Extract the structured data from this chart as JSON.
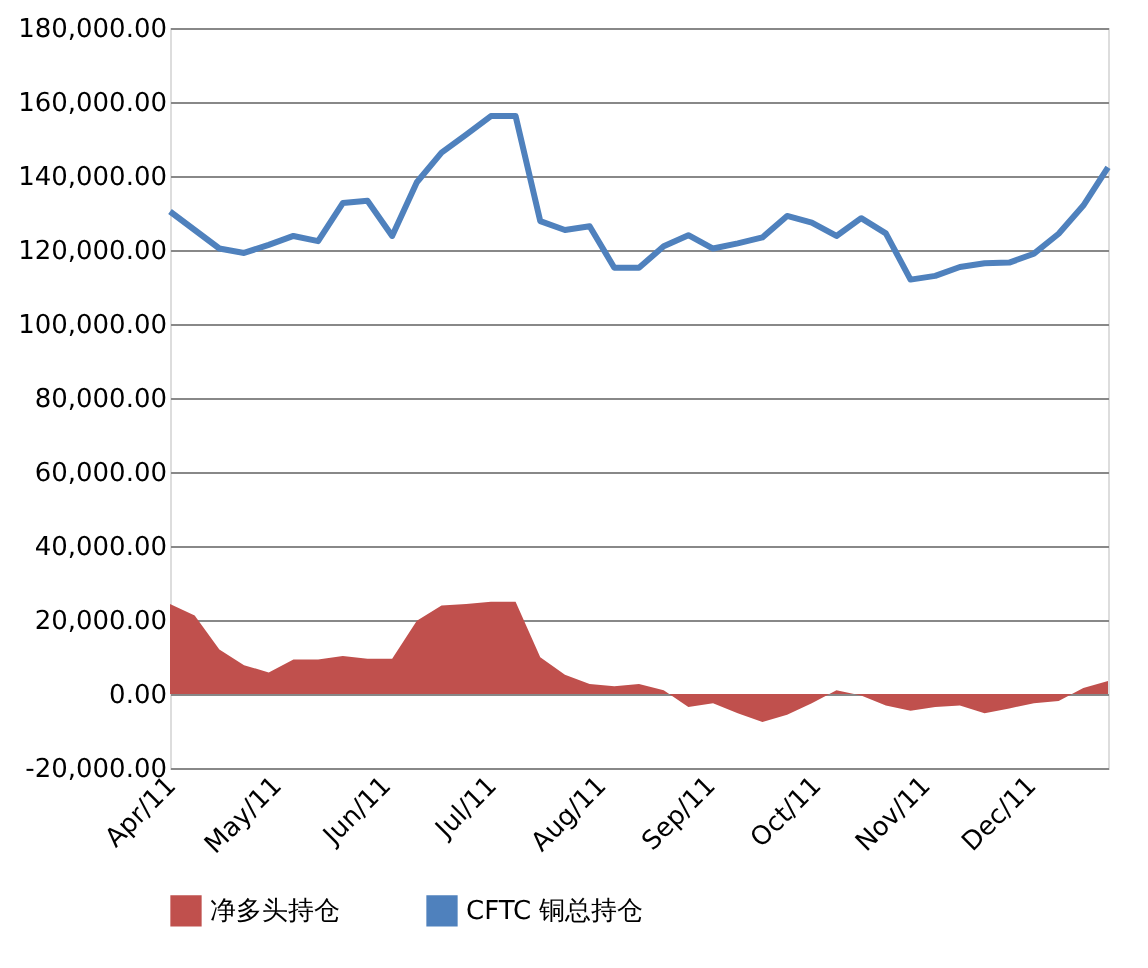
{
  "chart_data": {
    "type": "line",
    "x": [
      "2011-04-01",
      "2011-04-08",
      "2011-04-15",
      "2011-04-22",
      "2011-04-29",
      "2011-05-06",
      "2011-05-13",
      "2011-05-20",
      "2011-05-27",
      "2011-06-03",
      "2011-06-10",
      "2011-06-17",
      "2011-06-24",
      "2011-07-01",
      "2011-07-08",
      "2011-07-15",
      "2011-07-22",
      "2011-07-29",
      "2011-08-05",
      "2011-08-12",
      "2011-08-19",
      "2011-08-26",
      "2011-09-02",
      "2011-09-09",
      "2011-09-16",
      "2011-09-23",
      "2011-09-30",
      "2011-10-07",
      "2011-10-14",
      "2011-10-21",
      "2011-10-28",
      "2011-11-04",
      "2011-11-11",
      "2011-11-18",
      "2011-11-25",
      "2011-12-02",
      "2011-12-09",
      "2011-12-16",
      "2011-12-23"
    ],
    "series": [
      {
        "name": "净多头持仓",
        "type": "area",
        "color": "#c0504d",
        "values": [
          24300,
          21200,
          12000,
          7800,
          5800,
          9300,
          9300,
          10300,
          9500,
          9500,
          19800,
          23900,
          24300,
          24900,
          24900,
          9900,
          5200,
          2700,
          2100,
          2700,
          1000,
          -3500,
          -2500,
          -5200,
          -7600,
          -5600,
          -2500,
          1000,
          -400,
          -3100,
          -4500,
          -3500,
          -3100,
          -5200,
          -3900,
          -2500,
          -1900,
          1600,
          3500
        ]
      },
      {
        "name": "CFTC 铜总持仓",
        "color": "#4f81bd",
        "values": [
          130400,
          125400,
          120400,
          119200,
          121400,
          123800,
          122400,
          132700,
          133300,
          123800,
          138300,
          146300,
          151200,
          156200,
          156200,
          127800,
          125400,
          126400,
          115200,
          115200,
          121000,
          124000,
          120400,
          121800,
          123400,
          129200,
          127400,
          123800,
          128600,
          124500,
          112000,
          113000,
          115400,
          116400,
          116600,
          119000,
          124400,
          132000,
          142300
        ]
      }
    ],
    "xlim": [
      "2011-04-01",
      "2011-12-23"
    ],
    "xticks": [
      {
        "value": "2011-04-01",
        "label": "Apr/11"
      },
      {
        "value": "2011-05-01",
        "label": "May/11"
      },
      {
        "value": "2011-06-01",
        "label": "Jun/11"
      },
      {
        "value": "2011-07-01",
        "label": "Jul/11"
      },
      {
        "value": "2011-08-01",
        "label": "Aug/11"
      },
      {
        "value": "2011-09-01",
        "label": "Sep/11"
      },
      {
        "value": "2011-10-01",
        "label": "Oct/11"
      },
      {
        "value": "2011-11-01",
        "label": "Nov/11"
      },
      {
        "value": "2011-12-01",
        "label": "Dec/11"
      }
    ],
    "ylim": [
      -20000,
      180000
    ],
    "yticks": [
      {
        "value": -20000,
        "label": "-20,000.00"
      },
      {
        "value": 0,
        "label": "0.00"
      },
      {
        "value": 20000,
        "label": "20,000.00"
      },
      {
        "value": 40000,
        "label": "40,000.00"
      },
      {
        "value": 60000,
        "label": "60,000.00"
      },
      {
        "value": 80000,
        "label": "80,000.00"
      },
      {
        "value": 100000,
        "label": "100,000.00"
      },
      {
        "value": 120000,
        "label": "120,000.00"
      },
      {
        "value": 140000,
        "label": "140,000.00"
      },
      {
        "value": 160000,
        "label": "160,000.00"
      },
      {
        "value": 180000,
        "label": "180,000.00"
      }
    ],
    "grid": "y",
    "legend": "bottom",
    "marker": "none",
    "line_style": "solid"
  }
}
